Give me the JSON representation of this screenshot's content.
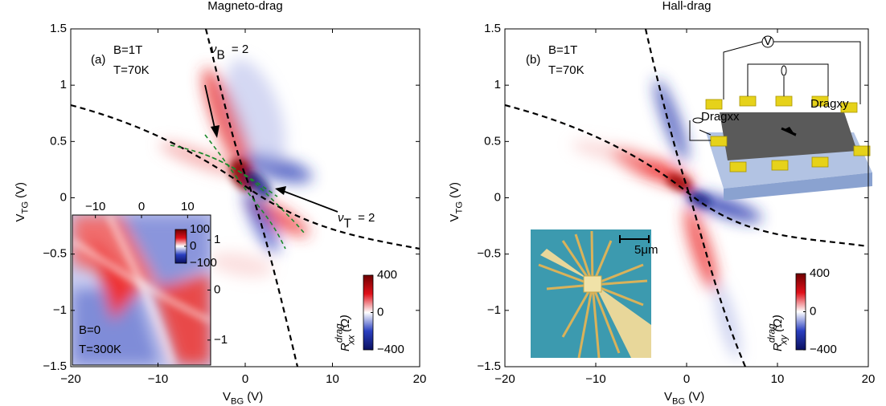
{
  "chart_data": [
    {
      "type": "heatmap",
      "title": "Magneto-drag",
      "x_label": {
        "text": "V",
        "sub": "BG",
        "suffix": "(V)"
      },
      "y_label": {
        "text": "V",
        "sub": "TG",
        "suffix": "(V)"
      },
      "xlim": [
        -20,
        20
      ],
      "ylim": [
        -1.5,
        1.5
      ],
      "xticks": [
        {
          "value": -20,
          "label": "−20"
        },
        {
          "value": -10,
          "label": "−10"
        },
        0,
        10,
        20
      ],
      "yticks": [
        {
          "value": -1.5,
          "label": "−1.5"
        },
        {
          "value": -1,
          "label": "−1"
        },
        {
          "value": -0.5,
          "label": "−0.5"
        },
        0,
        0.5,
        1,
        1.5
      ],
      "colorbar": {
        "lim": [
          -400,
          400
        ],
        "ticks": [
          400,
          0,
          {
            "value": -400,
            "label": "−400"
          }
        ],
        "label": {
          "text": "R",
          "sup": "drag",
          "sub": "xx",
          "suffix": "(Ω)"
        }
      },
      "annotations": {
        "label": "(a)",
        "field": "B=1T",
        "temp": "T=70K",
        "nu_b": {
          "text": "ν",
          "sub": "B",
          "suffix": " = 2"
        },
        "nu_t": {
          "text": "ν",
          "sub": "T",
          "suffix": " = 2"
        }
      },
      "inset": {
        "xlim": [
          -15,
          15
        ],
        "ylim": [
          -1.5,
          1.5
        ],
        "xticks": [
          {
            "value": -10,
            "label": "−10"
          },
          0,
          10
        ],
        "yticks": [
          1,
          0,
          {
            "value": -1,
            "label": "−1"
          }
        ],
        "colorbar": {
          "lim": [
            -100,
            100
          ],
          "ticks": [
            100,
            0,
            {
              "value": -100,
              "label": "−100"
            }
          ]
        },
        "field": "B=0",
        "temp": "T=300K"
      }
    },
    {
      "type": "heatmap",
      "title": "Hall-drag",
      "x_label": {
        "text": "V",
        "sub": "BG",
        "suffix": "(V)"
      },
      "y_label": {
        "text": "V",
        "sub": "TG",
        "suffix": "(V)"
      },
      "xlim": [
        -20,
        20
      ],
      "ylim": [
        -1.5,
        1.5
      ],
      "xticks": [
        {
          "value": -20,
          "label": "−20"
        },
        {
          "value": -10,
          "label": "−10"
        },
        0,
        10,
        20
      ],
      "yticks": [
        {
          "value": -1.5,
          "label": "−1.5"
        },
        {
          "value": -1,
          "label": "−1"
        },
        {
          "value": -0.5,
          "label": "−0.5"
        },
        0,
        0.5,
        1,
        1.5
      ],
      "colorbar": {
        "lim": [
          -400,
          400
        ],
        "ticks": [
          400,
          0,
          {
            "value": -400,
            "label": "−400"
          }
        ],
        "label": {
          "text": "R",
          "sup": "drag",
          "sub": "xy",
          "suffix": "(Ω)"
        }
      },
      "annotations": {
        "label": "(b)",
        "field": "B=1T",
        "temp": "T=70K",
        "dragxy": "Dragxy",
        "dragxx": "Dragxx",
        "voltmeter": "V",
        "scale": "5μm"
      }
    }
  ]
}
